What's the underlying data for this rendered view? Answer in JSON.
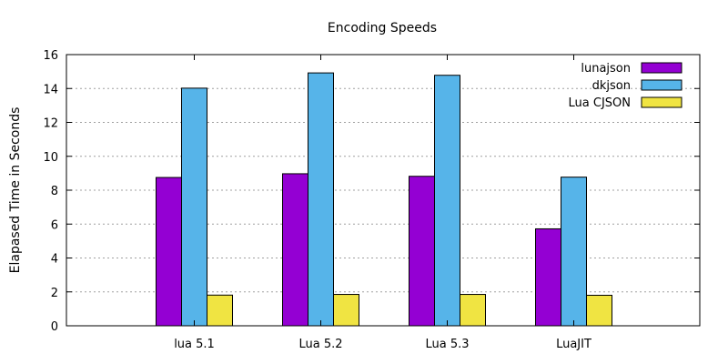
{
  "chart_data": {
    "type": "bar",
    "title": "Encoding Speeds",
    "xlabel": "",
    "ylabel": "Elapased Time in Seconds",
    "ylim": [
      0,
      16
    ],
    "yticks": [
      0,
      2,
      4,
      6,
      8,
      10,
      12,
      14,
      16
    ],
    "grid": true,
    "legend_position": "top-right",
    "categories": [
      "lua 5.1",
      "Lua 5.2",
      "Lua 5.3",
      "LuaJIT"
    ],
    "series": [
      {
        "name": "lunajson",
        "color": "#9400d3",
        "values": [
          8.75,
          8.97,
          8.82,
          5.72
        ]
      },
      {
        "name": "dkjson",
        "color": "#56b4e9",
        "values": [
          14.02,
          14.92,
          14.78,
          8.77
        ]
      },
      {
        "name": "Lua CJSON",
        "color": "#f0e442",
        "values": [
          1.81,
          1.85,
          1.85,
          1.8
        ]
      }
    ]
  }
}
